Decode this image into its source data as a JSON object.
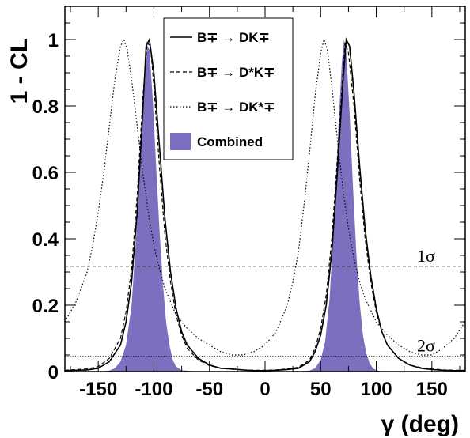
{
  "chart_data": {
    "type": "line",
    "xlabel": "γ (deg)",
    "ylabel": "1 - CL",
    "xlim": [
      -180,
      180
    ],
    "ylim": [
      0,
      1.1
    ],
    "x_ticks": [
      -150,
      -100,
      -50,
      0,
      50,
      100,
      150
    ],
    "x_tick_labels": [
      "-150",
      "-100",
      "-50",
      "0",
      "50",
      "100",
      "150"
    ],
    "y_ticks": [
      0,
      0.2,
      0.4,
      0.6,
      0.8,
      1
    ],
    "y_tick_labels": [
      "0",
      "0.2",
      "0.4",
      "0.6",
      "0.8",
      "1"
    ],
    "legend_position": "top-center",
    "series": [
      {
        "name": "B∓ → DK∓",
        "style": "solid",
        "color": "#000000",
        "x": [
          -180,
          -160,
          -150,
          -140,
          -130,
          -125,
          -120,
          -115,
          -110,
          -107,
          -104,
          -100,
          -95,
          -90,
          -85,
          -80,
          -75,
          -70,
          -60,
          -50,
          -40,
          -30,
          -20,
          -10,
          0,
          10,
          20,
          30,
          40,
          45,
          50,
          55,
          60,
          65,
          70,
          73,
          76,
          80,
          85,
          90,
          95,
          100,
          105,
          110,
          120,
          130,
          140,
          150,
          160,
          170,
          180
        ],
        "y": [
          0.003,
          0.005,
          0.01,
          0.03,
          0.08,
          0.15,
          0.27,
          0.48,
          0.78,
          0.98,
          1.0,
          0.9,
          0.68,
          0.46,
          0.3,
          0.19,
          0.12,
          0.08,
          0.04,
          0.02,
          0.01,
          0.008,
          0.005,
          0.003,
          0.003,
          0.004,
          0.006,
          0.01,
          0.03,
          0.06,
          0.11,
          0.2,
          0.36,
          0.6,
          0.87,
          1.0,
          0.98,
          0.84,
          0.62,
          0.43,
          0.29,
          0.19,
          0.12,
          0.08,
          0.04,
          0.02,
          0.01,
          0.006,
          0.004,
          0.003,
          0.003
        ]
      },
      {
        "name": "B∓ → D*K∓",
        "style": "dashed",
        "color": "#000000",
        "x": [
          -180,
          -160,
          -150,
          -140,
          -130,
          -125,
          -120,
          -115,
          -110,
          -106,
          -103,
          -100,
          -95,
          -90,
          -85,
          -80,
          -75,
          -70,
          -60,
          -50,
          -40,
          -30,
          -20,
          -10,
          0,
          10,
          20,
          30,
          40,
          45,
          50,
          55,
          60,
          65,
          70,
          72,
          75,
          80,
          85,
          90,
          95,
          100,
          105,
          110,
          120,
          130,
          140,
          150,
          160,
          170,
          180
        ],
        "y": [
          0.004,
          0.008,
          0.015,
          0.04,
          0.1,
          0.18,
          0.31,
          0.53,
          0.82,
          0.99,
          0.98,
          0.86,
          0.62,
          0.41,
          0.27,
          0.17,
          0.11,
          0.07,
          0.035,
          0.018,
          0.01,
          0.007,
          0.005,
          0.004,
          0.004,
          0.005,
          0.008,
          0.013,
          0.035,
          0.07,
          0.13,
          0.23,
          0.4,
          0.64,
          0.9,
          0.99,
          0.96,
          0.8,
          0.58,
          0.4,
          0.27,
          0.18,
          0.12,
          0.08,
          0.04,
          0.02,
          0.012,
          0.008,
          0.005,
          0.004,
          0.004
        ]
      },
      {
        "name": "B∓ → DK*∓",
        "style": "dotted",
        "color": "#000000",
        "x": [
          -180,
          -170,
          -160,
          -155,
          -150,
          -145,
          -140,
          -135,
          -130,
          -127,
          -124,
          -120,
          -115,
          -110,
          -105,
          -100,
          -95,
          -90,
          -85,
          -80,
          -70,
          -60,
          -50,
          -40,
          -30,
          -20,
          -10,
          0,
          10,
          20,
          25,
          30,
          35,
          40,
          45,
          50,
          53,
          56,
          60,
          65,
          70,
          75,
          80,
          85,
          90,
          100,
          110,
          120,
          130,
          140,
          150,
          160,
          170,
          180
        ],
        "y": [
          0.15,
          0.21,
          0.3,
          0.38,
          0.48,
          0.6,
          0.74,
          0.88,
          0.98,
          1.0,
          0.97,
          0.88,
          0.74,
          0.6,
          0.48,
          0.38,
          0.31,
          0.25,
          0.21,
          0.17,
          0.13,
          0.1,
          0.08,
          0.06,
          0.05,
          0.05,
          0.06,
          0.08,
          0.12,
          0.2,
          0.27,
          0.36,
          0.5,
          0.66,
          0.83,
          0.96,
          1.0,
          0.97,
          0.86,
          0.7,
          0.55,
          0.43,
          0.34,
          0.27,
          0.22,
          0.15,
          0.11,
          0.08,
          0.06,
          0.05,
          0.05,
          0.07,
          0.1,
          0.15
        ]
      },
      {
        "name": "Combined",
        "style": "filled",
        "color": "#7b6fbf",
        "x": [
          -180,
          -150,
          -140,
          -135,
          -130,
          -125,
          -120,
          -116,
          -112,
          -108,
          -106,
          -104,
          -101,
          -98,
          -95,
          -92,
          -89,
          -86,
          -83,
          -80,
          -75,
          -60,
          -30,
          0,
          30,
          40,
          45,
          50,
          54,
          58,
          62,
          66,
          69,
          71,
          73,
          76,
          79,
          82,
          85,
          88,
          91,
          94,
          97,
          100,
          105,
          120,
          150,
          180
        ],
        "y": [
          0,
          0,
          0.003,
          0.01,
          0.03,
          0.08,
          0.2,
          0.4,
          0.65,
          0.88,
          0.98,
          0.97,
          0.82,
          0.62,
          0.43,
          0.27,
          0.15,
          0.08,
          0.035,
          0.015,
          0.004,
          0,
          0,
          0,
          0,
          0.003,
          0.01,
          0.035,
          0.09,
          0.22,
          0.45,
          0.74,
          0.93,
          1.0,
          0.96,
          0.78,
          0.56,
          0.36,
          0.21,
          0.11,
          0.055,
          0.025,
          0.01,
          0.004,
          0.001,
          0,
          0,
          0
        ]
      }
    ],
    "reference_lines": [
      {
        "label": "1σ",
        "y": 0.317,
        "style": "dashed"
      },
      {
        "label": "2σ",
        "y": 0.046,
        "style": "dotted"
      }
    ]
  }
}
